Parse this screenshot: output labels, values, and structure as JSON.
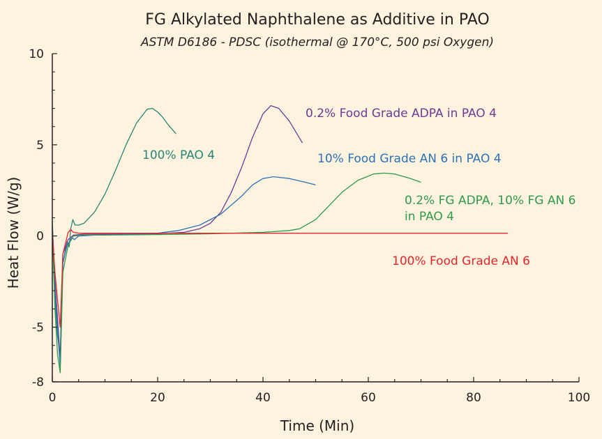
{
  "chart_data": {
    "type": "line",
    "title": "FG Alkylated Naphthalene as Additive in PAO",
    "subtitle": "ASTM D6186 - PDSC (isothermal @ 170°C, 500 psi Oxygen)",
    "xlabel": "Time (Min)",
    "ylabel": "Heat Flow (W/g)",
    "xlim": [
      0,
      100
    ],
    "ylim": [
      -8,
      10
    ],
    "xticks": [
      0,
      20,
      40,
      60,
      80,
      100
    ],
    "yticks": [
      10,
      5,
      0,
      -5,
      -8
    ],
    "xtick_labels": [
      "0",
      "20",
      "40",
      "60",
      "80",
      "100"
    ],
    "ytick_labels": [
      "10",
      "5",
      "0",
      "-5",
      "-8"
    ],
    "grid": false,
    "series": [
      {
        "name": "100% PAO 4",
        "label_lines": [
          "100% PAO 4"
        ],
        "color": "#2a8579",
        "points": [
          [
            0,
            0.5
          ],
          [
            0.5,
            -3.5
          ],
          [
            1,
            -5.5
          ],
          [
            1.5,
            -6.5
          ],
          [
            2,
            -1.5
          ],
          [
            2.8,
            -0.3
          ],
          [
            3.2,
            -0.6
          ],
          [
            3.5,
            0.4
          ],
          [
            3.9,
            0.9
          ],
          [
            4.3,
            0.6
          ],
          [
            5,
            0.6
          ],
          [
            6,
            0.7
          ],
          [
            8,
            1.3
          ],
          [
            10,
            2.3
          ],
          [
            12,
            3.6
          ],
          [
            14,
            5.0
          ],
          [
            16,
            6.2
          ],
          [
            18,
            6.95
          ],
          [
            19,
            7.0
          ],
          [
            20,
            6.8
          ],
          [
            21,
            6.5
          ],
          [
            22,
            6.1
          ],
          [
            23.5,
            5.6
          ]
        ]
      },
      {
        "name": "0.2% Food Grade ADPA in PAO 4",
        "label_lines": [
          "0.2% Food Grade ADPA in PAO 4"
        ],
        "color": "#6c3a94",
        "points": [
          [
            0,
            0.6
          ],
          [
            0.5,
            -2.5
          ],
          [
            1,
            -4.5
          ],
          [
            1.5,
            -6.8
          ],
          [
            2,
            -1.0
          ],
          [
            3,
            -0.2
          ],
          [
            4,
            0.05
          ],
          [
            6,
            0.1
          ],
          [
            10,
            0.1
          ],
          [
            20,
            0.12
          ],
          [
            25,
            0.2
          ],
          [
            28,
            0.4
          ],
          [
            30,
            0.7
          ],
          [
            32,
            1.3
          ],
          [
            34,
            2.4
          ],
          [
            36,
            3.8
          ],
          [
            38,
            5.4
          ],
          [
            40,
            6.7
          ],
          [
            41.5,
            7.15
          ],
          [
            43,
            7.0
          ],
          [
            45,
            6.3
          ],
          [
            47.5,
            5.1
          ]
        ]
      },
      {
        "name": "10% Food Grade AN 6 in PAO 4",
        "label_lines": [
          "10% Food Grade AN 6 in PAO 4"
        ],
        "color": "#2b72b6",
        "points": [
          [
            0,
            0.8
          ],
          [
            0.5,
            -3.0
          ],
          [
            1,
            -5.0
          ],
          [
            1.5,
            -7.2
          ],
          [
            2,
            -1.5
          ],
          [
            2.8,
            -0.5
          ],
          [
            3.3,
            -0.3
          ],
          [
            3.7,
            -0.1
          ],
          [
            4.2,
            -0.2
          ],
          [
            5,
            0.0
          ],
          [
            8,
            0.05
          ],
          [
            15,
            0.1
          ],
          [
            20,
            0.15
          ],
          [
            24,
            0.3
          ],
          [
            28,
            0.6
          ],
          [
            32,
            1.2
          ],
          [
            36,
            2.2
          ],
          [
            38,
            2.8
          ],
          [
            40,
            3.15
          ],
          [
            42,
            3.25
          ],
          [
            45,
            3.15
          ],
          [
            48,
            2.95
          ],
          [
            50,
            2.8
          ]
        ]
      },
      {
        "name": "0.2% FG ADPA, 10% FG AN 6 in PAO 4",
        "label_lines": [
          "0.2% FG ADPA, 10% FG AN 6",
          "in PAO 4"
        ],
        "color": "#2e9a4e",
        "points": [
          [
            0,
            0.3
          ],
          [
            0.5,
            -4.0
          ],
          [
            1,
            -6.5
          ],
          [
            1.5,
            -7.5
          ],
          [
            2,
            -2.0
          ],
          [
            3,
            -0.5
          ],
          [
            4,
            0.0
          ],
          [
            6,
            0.05
          ],
          [
            10,
            0.05
          ],
          [
            20,
            0.08
          ],
          [
            30,
            0.12
          ],
          [
            40,
            0.2
          ],
          [
            45,
            0.3
          ],
          [
            47,
            0.4
          ],
          [
            50,
            0.9
          ],
          [
            52,
            1.5
          ],
          [
            55,
            2.4
          ],
          [
            58,
            3.05
          ],
          [
            61,
            3.4
          ],
          [
            63,
            3.45
          ],
          [
            65,
            3.4
          ],
          [
            68,
            3.15
          ],
          [
            70,
            2.95
          ]
        ]
      },
      {
        "name": "100% Food Grade AN 6",
        "label_lines": [
          "100% Food Grade AN 6"
        ],
        "color": "#e3262e",
        "points": [
          [
            0,
            0.2
          ],
          [
            0.5,
            -2.0
          ],
          [
            1,
            -3.5
          ],
          [
            1.5,
            -5.0
          ],
          [
            2,
            -1.0
          ],
          [
            3,
            0.2
          ],
          [
            3.5,
            0.35
          ],
          [
            4,
            0.2
          ],
          [
            5,
            0.15
          ],
          [
            10,
            0.15
          ],
          [
            20,
            0.15
          ],
          [
            40,
            0.15
          ],
          [
            60,
            0.15
          ],
          [
            80,
            0.15
          ],
          [
            86.5,
            0.15
          ]
        ]
      }
    ]
  }
}
